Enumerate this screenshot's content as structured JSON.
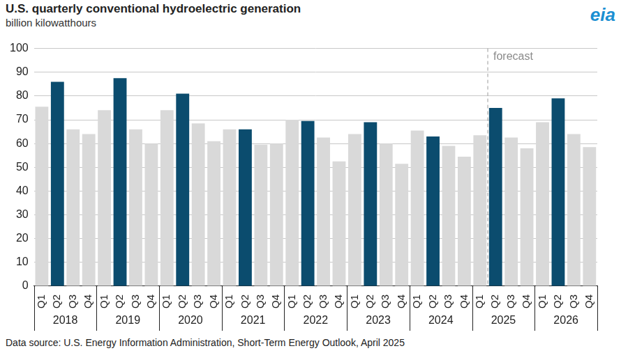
{
  "chart_data": {
    "type": "bar",
    "title": "U.S. quarterly conventional hydroelectric generation",
    "subtitle": "billion kilowatthours",
    "logo": "eia",
    "source": "Data source: U.S. Energy Information Administration, Short-Term Energy Outlook, April 2025",
    "categories": [
      "Q1",
      "Q2",
      "Q3",
      "Q4",
      "Q1",
      "Q2",
      "Q3",
      "Q4",
      "Q1",
      "Q2",
      "Q3",
      "Q4",
      "Q1",
      "Q2",
      "Q3",
      "Q4",
      "Q1",
      "Q2",
      "Q3",
      "Q4",
      "Q1",
      "Q2",
      "Q3",
      "Q4",
      "Q1",
      "Q2",
      "Q3",
      "Q4",
      "Q1",
      "Q2",
      "Q3",
      "Q4",
      "Q1",
      "Q2",
      "Q3",
      "Q4"
    ],
    "category_groups": [
      "2018",
      "2019",
      "2020",
      "2021",
      "2022",
      "2023",
      "2024",
      "2025",
      "2026"
    ],
    "values": [
      75.5,
      86,
      66,
      64,
      74,
      87.5,
      66,
      60,
      74,
      81,
      68.5,
      61,
      66,
      66,
      59.5,
      60,
      70,
      69.5,
      62.5,
      52.5,
      64,
      69,
      60,
      51.5,
      65.5,
      63,
      59,
      54.5,
      63.5,
      75,
      62.5,
      58,
      69,
      79,
      64,
      58.5
    ],
    "colors": [
      "#d9d9d9",
      "#0b4c6e",
      "#d9d9d9",
      "#d9d9d9",
      "#d9d9d9",
      "#0b4c6e",
      "#d9d9d9",
      "#d9d9d9",
      "#d9d9d9",
      "#0b4c6e",
      "#d9d9d9",
      "#d9d9d9",
      "#d9d9d9",
      "#0b4c6e",
      "#d9d9d9",
      "#d9d9d9",
      "#d9d9d9",
      "#0b4c6e",
      "#d9d9d9",
      "#d9d9d9",
      "#d9d9d9",
      "#0b4c6e",
      "#d9d9d9",
      "#d9d9d9",
      "#d9d9d9",
      "#0b4c6e",
      "#d9d9d9",
      "#d9d9d9",
      "#d9d9d9",
      "#0b4c6e",
      "#d9d9d9",
      "#d9d9d9",
      "#d9d9d9",
      "#0b4c6e",
      "#d9d9d9",
      "#d9d9d9"
    ],
    "ylim": [
      0,
      100
    ],
    "yticks": [
      0,
      10,
      20,
      30,
      40,
      50,
      60,
      70,
      80,
      90,
      100
    ],
    "grid": true,
    "annotations": [
      {
        "text": "forecast",
        "category": "Q2",
        "group": "2025"
      }
    ]
  }
}
